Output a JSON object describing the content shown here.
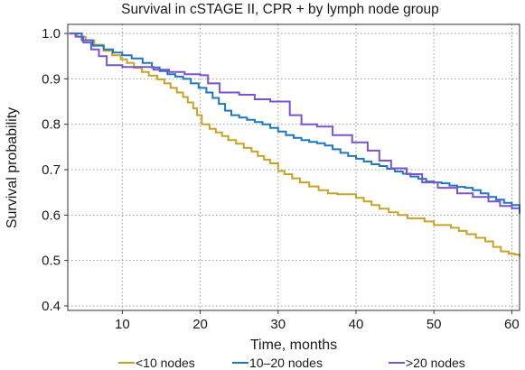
{
  "chart_data": {
    "type": "line",
    "title": "Survival in cSTAGE II, CPR + by lymph node group",
    "xlabel": "Time, months",
    "ylabel": "Survival probability",
    "xlim": [
      3,
      61
    ],
    "ylim": [
      0.39,
      1.02
    ],
    "xticks": [
      10,
      20,
      30,
      40,
      50,
      60
    ],
    "yticks": [
      0.4,
      0.5,
      0.6,
      0.7,
      0.8,
      0.9,
      1.0
    ],
    "ytick_labels": [
      "0.4",
      "0.5",
      "0.6",
      "0.7",
      "0.8",
      "0.9",
      "1.0"
    ],
    "grid": true,
    "legend_position": "bottom",
    "series": [
      {
        "name": "<10 nodes",
        "color": "#c9a227",
        "step": true,
        "x": [
          3.2,
          4.2,
          5.3,
          6.4,
          7.6,
          8.7,
          9.8,
          10.6,
          11.5,
          12.5,
          13.4,
          14.5,
          15.4,
          16.2,
          17.0,
          17.8,
          18.4,
          19.1,
          19.6,
          20.2,
          21.2,
          22.0,
          22.8,
          23.6,
          24.6,
          25.6,
          26.6,
          27.4,
          28.2,
          29.0,
          30.0,
          30.8,
          31.8,
          32.8,
          34.0,
          35.2,
          36.4,
          37.6,
          38.8,
          40.0,
          41.0,
          42.0,
          43.0,
          44.2,
          45.4,
          46.6,
          47.8,
          48.8,
          50.0,
          51.2,
          52.2,
          53.2,
          54.2,
          55.4,
          56.6,
          57.6,
          58.6,
          59.6,
          60.4,
          61.0
        ],
        "y": [
          1.0,
          0.993,
          0.985,
          0.975,
          0.962,
          0.952,
          0.943,
          0.935,
          0.924,
          0.915,
          0.907,
          0.899,
          0.89,
          0.88,
          0.87,
          0.86,
          0.848,
          0.835,
          0.82,
          0.8,
          0.79,
          0.782,
          0.774,
          0.765,
          0.757,
          0.748,
          0.74,
          0.73,
          0.722,
          0.714,
          0.697,
          0.69,
          0.681,
          0.672,
          0.663,
          0.655,
          0.648,
          0.646,
          0.646,
          0.638,
          0.63,
          0.622,
          0.614,
          0.606,
          0.6,
          0.593,
          0.593,
          0.586,
          0.578,
          0.578,
          0.572,
          0.565,
          0.558,
          0.55,
          0.542,
          0.53,
          0.52,
          0.515,
          0.513,
          0.508
        ]
      },
      {
        "name": "10–20 nodes",
        "color": "#1f77c4",
        "step": true,
        "x": [
          3.2,
          4.8,
          6.2,
          7.6,
          8.8,
          10.0,
          11.2,
          12.6,
          13.8,
          14.8,
          15.8,
          16.8,
          17.8,
          18.8,
          19.8,
          20.8,
          21.6,
          22.4,
          23.2,
          24.0,
          25.0,
          26.0,
          27.0,
          28.0,
          29.0,
          30.0,
          31.0,
          32.0,
          33.0,
          34.0,
          35.0,
          36.0,
          37.0,
          38.0,
          39.0,
          40.0,
          41.0,
          42.0,
          43.0,
          44.0,
          45.0,
          46.0,
          47.0,
          48.0,
          49.0,
          50.0,
          51.0,
          52.0,
          53.0,
          54.0,
          55.0,
          56.0,
          57.0,
          58.0,
          59.0,
          60.0,
          61.0
        ],
        "y": [
          1.0,
          0.985,
          0.973,
          0.965,
          0.958,
          0.952,
          0.945,
          0.935,
          0.925,
          0.917,
          0.91,
          0.905,
          0.9,
          0.89,
          0.88,
          0.87,
          0.858,
          0.845,
          0.83,
          0.82,
          0.815,
          0.81,
          0.805,
          0.8,
          0.792,
          0.784,
          0.776,
          0.77,
          0.765,
          0.761,
          0.758,
          0.753,
          0.745,
          0.737,
          0.73,
          0.724,
          0.718,
          0.712,
          0.708,
          0.702,
          0.696,
          0.691,
          0.685,
          0.68,
          0.674,
          0.672,
          0.67,
          0.665,
          0.662,
          0.66,
          0.655,
          0.648,
          0.64,
          0.634,
          0.627,
          0.622,
          0.603
        ]
      },
      {
        "name": ">20 nodes",
        "color": "#7b52d4",
        "step": true,
        "x": [
          3.2,
          4.0,
          5.0,
          6.0,
          7.0,
          8.0,
          10.0,
          12.0,
          14.0,
          16.0,
          18.0,
          20.0,
          21.0,
          22.5,
          25.0,
          27.0,
          29.0,
          31.5,
          33.0,
          35.0,
          37.0,
          39.5,
          41.5,
          43.0,
          44.5,
          46.5,
          48.5,
          50.5,
          53.0,
          55.0,
          57.0,
          58.5,
          60.0,
          61.0
        ],
        "y": [
          1.0,
          0.993,
          0.98,
          0.965,
          0.95,
          0.93,
          0.926,
          0.926,
          0.92,
          0.915,
          0.91,
          0.908,
          0.89,
          0.87,
          0.865,
          0.855,
          0.85,
          0.82,
          0.8,
          0.795,
          0.776,
          0.76,
          0.742,
          0.72,
          0.703,
          0.69,
          0.672,
          0.66,
          0.648,
          0.64,
          0.63,
          0.62,
          0.615,
          0.615
        ]
      }
    ]
  }
}
